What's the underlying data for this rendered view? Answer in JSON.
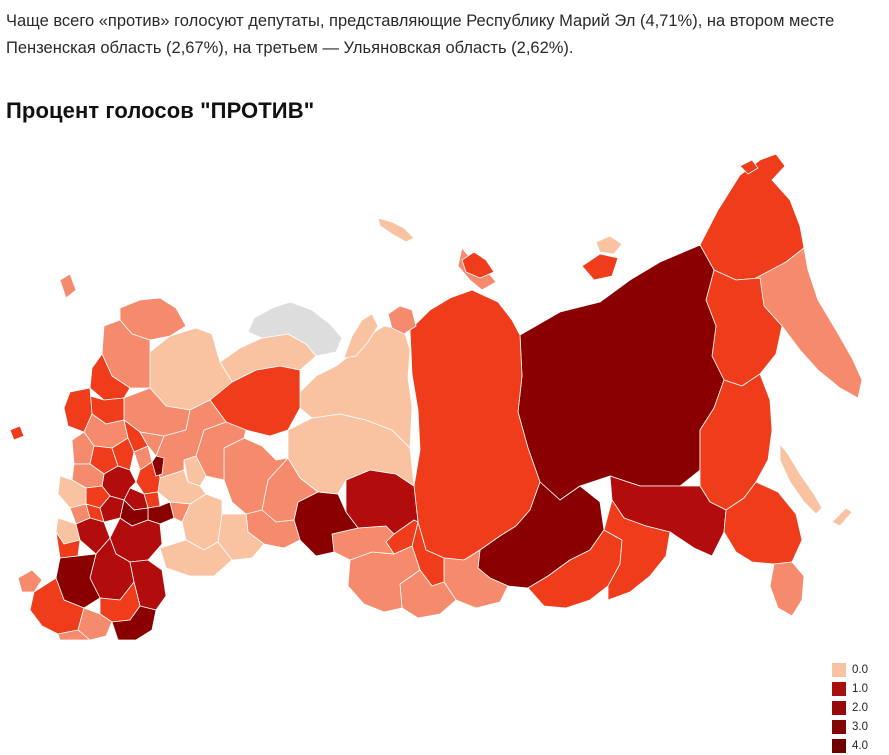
{
  "article": {
    "intro": "Чаще всего «против» голосуют депутаты, представляющие Республику Марий Эл (4,71%), на втором месте Пензенская область (2,67%), на третьем — Ульяновская область (2,62%)."
  },
  "map": {
    "title": "Процент голосов \"ПРОТИВ\"",
    "colors": {
      "c0": "#f9c3a2",
      "c1": "#f58a6c",
      "c2": "#ef3d1c",
      "c3": "#b30c0c",
      "c4": "#8a0000",
      "nodata": "#dddddd"
    },
    "legend": [
      {
        "label": "0.0",
        "color": "#f9c3a2"
      },
      {
        "label": "1.0",
        "color": "#a80f0f"
      },
      {
        "label": "2.0",
        "color": "#960a0a"
      },
      {
        "label": "3.0",
        "color": "#830606"
      },
      {
        "label": "4.0",
        "color": "#700000"
      }
    ]
  }
}
